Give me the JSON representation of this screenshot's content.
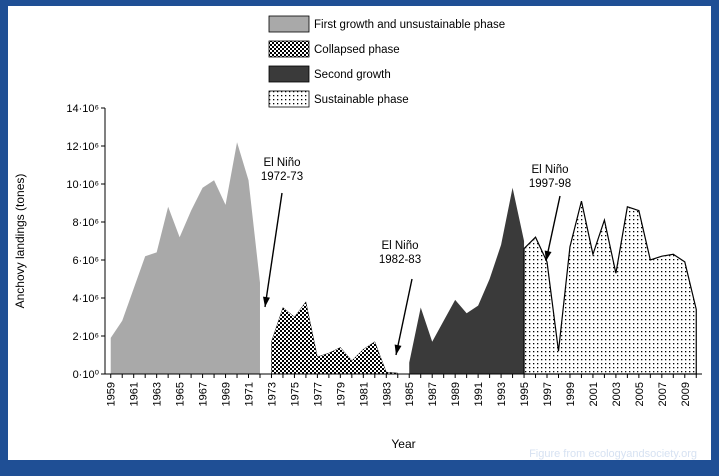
{
  "chart_data": {
    "type": "area",
    "title": "",
    "xlabel": "Year",
    "ylabel": "Anchovy landings (tones)",
    "xlim": [
      1958.5,
      2010.5
    ],
    "ylim": [
      0,
      14000000
    ],
    "y_ticks": [
      {
        "value": 0,
        "label": "0·10⁰"
      },
      {
        "value": 2000000,
        "label": "2·10⁶"
      },
      {
        "value": 4000000,
        "label": "4·10⁶"
      },
      {
        "value": 6000000,
        "label": "6·10⁶"
      },
      {
        "value": 8000000,
        "label": "8·10⁶"
      },
      {
        "value": 10000000,
        "label": "10·10⁶"
      },
      {
        "value": 12000000,
        "label": "12·10⁶"
      },
      {
        "value": 14000000,
        "label": "14·10⁶"
      }
    ],
    "x_tick_labels": [
      "1959",
      "1961",
      "1963",
      "1965",
      "1967",
      "1969",
      "1971",
      "1973",
      "1975",
      "1977",
      "1979",
      "1981",
      "1983",
      "1985",
      "1987",
      "1989",
      "1991",
      "1993",
      "1995",
      "1997",
      "1999",
      "2001",
      "2003",
      "2005",
      "2007",
      "2009"
    ],
    "series": [
      {
        "name": "First growth and unsustainable phase",
        "fill": "solid-light-gray",
        "color": "#a9a9a9",
        "x": [
          1959,
          1960,
          1961,
          1962,
          1963,
          1964,
          1965,
          1966,
          1967,
          1968,
          1969,
          1970,
          1971,
          1972
        ],
        "values": [
          1900000,
          2800000,
          4500000,
          6200000,
          6400000,
          8800000,
          7200000,
          8600000,
          9800000,
          10200000,
          8900000,
          12200000,
          10200000,
          4800000
        ]
      },
      {
        "name": "Collapsed phase",
        "fill": "checkered",
        "color": "#000000",
        "x": [
          1973,
          1974,
          1975,
          1976,
          1977,
          1978,
          1979,
          1980,
          1981,
          1982,
          1983,
          1984
        ],
        "values": [
          1700000,
          3500000,
          3000000,
          3800000,
          900000,
          1100000,
          1400000,
          700000,
          1300000,
          1700000,
          100000,
          50000
        ]
      },
      {
        "name": "Second growth",
        "fill": "solid-dark",
        "color": "#3a3a3a",
        "x": [
          1985,
          1986,
          1987,
          1988,
          1989,
          1990,
          1991,
          1992,
          1993,
          1994,
          1995
        ],
        "values": [
          600000,
          3500000,
          1700000,
          2800000,
          3900000,
          3200000,
          3600000,
          5000000,
          6800000,
          9800000,
          7000000
        ]
      },
      {
        "name": "Sustainable phase",
        "fill": "dotted",
        "color": "#000000",
        "x": [
          1995,
          1996,
          1997,
          1998,
          1999,
          2000,
          2001,
          2002,
          2003,
          2004,
          2005,
          2006,
          2007,
          2008,
          2009,
          2010
        ],
        "values": [
          6600000,
          7200000,
          5900000,
          1200000,
          6700000,
          9100000,
          6300000,
          8100000,
          5300000,
          8800000,
          8600000,
          6000000,
          6200000,
          6300000,
          5900000,
          3400000
        ]
      }
    ],
    "annotations": [
      {
        "line1": "El Niño",
        "line2": "1972-73",
        "points_to_year": 1973
      },
      {
        "line1": "El Niño",
        "line2": "1982-83",
        "points_to_year": 1983
      },
      {
        "line1": "El Niño",
        "line2": "1997-98",
        "points_to_year": 1998
      }
    ]
  },
  "credit": "Figure from ecologyandsociety.org"
}
